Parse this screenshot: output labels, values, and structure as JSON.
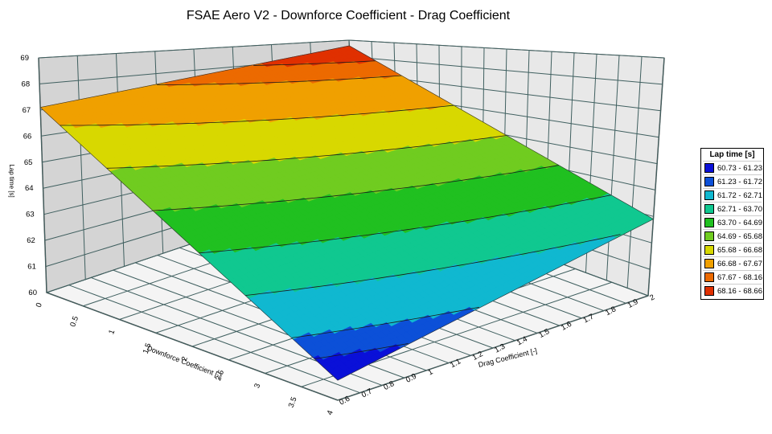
{
  "chart_data": {
    "type": "surface",
    "title": "FSAE Aero V2  - Downforce Coefficient - Drag Coefficient",
    "xlabel": "Drag Coefficient [-]",
    "ylabel": "Downforce Coefficient [-]",
    "zlabel": "Lap time [s]",
    "xlim": [
      0.6,
      2
    ],
    "ylim": [
      0,
      4
    ],
    "zlim": [
      60,
      69
    ],
    "x_ticks": [
      "0.6",
      "0.7",
      "0.8",
      "0.9",
      "1",
      "1.1",
      "1.2",
      "1.3",
      "1.4",
      "1.5",
      "1.6",
      "1.7",
      "1.8",
      "1.9",
      "2"
    ],
    "y_ticks": [
      "0",
      "0.5",
      "1",
      "1.5",
      "2",
      "2.5",
      "3",
      "3.5",
      "4"
    ],
    "z_ticks": [
      "60",
      "61",
      "62",
      "63",
      "64",
      "65",
      "66",
      "67",
      "68",
      "69"
    ],
    "surface_corners": [
      {
        "drag": 0.6,
        "downforce": 4,
        "lap_time": 60.73
      },
      {
        "drag": 2,
        "downforce": 4,
        "lap_time": 62.9
      },
      {
        "drag": 2,
        "downforce": 0,
        "lap_time": 68.66
      },
      {
        "drag": 0.6,
        "downforce": 0,
        "lap_time": 67.1
      }
    ],
    "legend": {
      "title": "Lap time [s]",
      "position": "right",
      "items": [
        {
          "label": "60.73 - 61.23",
          "color": "#0a10d8"
        },
        {
          "label": "61.23 - 61.72",
          "color": "#0c50d8"
        },
        {
          "label": "61.72 - 62.71",
          "color": "#10b8d0"
        },
        {
          "label": "62.71 - 63.70",
          "color": "#10c890"
        },
        {
          "label": "63.70 - 64.69",
          "color": "#20c020"
        },
        {
          "label": "64.69 - 65.68",
          "color": "#70cc20"
        },
        {
          "label": "65.68 - 66.68",
          "color": "#d8d800"
        },
        {
          "label": "66.68 - 67.67",
          "color": "#f0a000"
        },
        {
          "label": "67.67 - 68.16",
          "color": "#ec6a00"
        },
        {
          "label": "68.16 - 68.66",
          "color": "#e03000"
        }
      ]
    },
    "grid": true
  }
}
